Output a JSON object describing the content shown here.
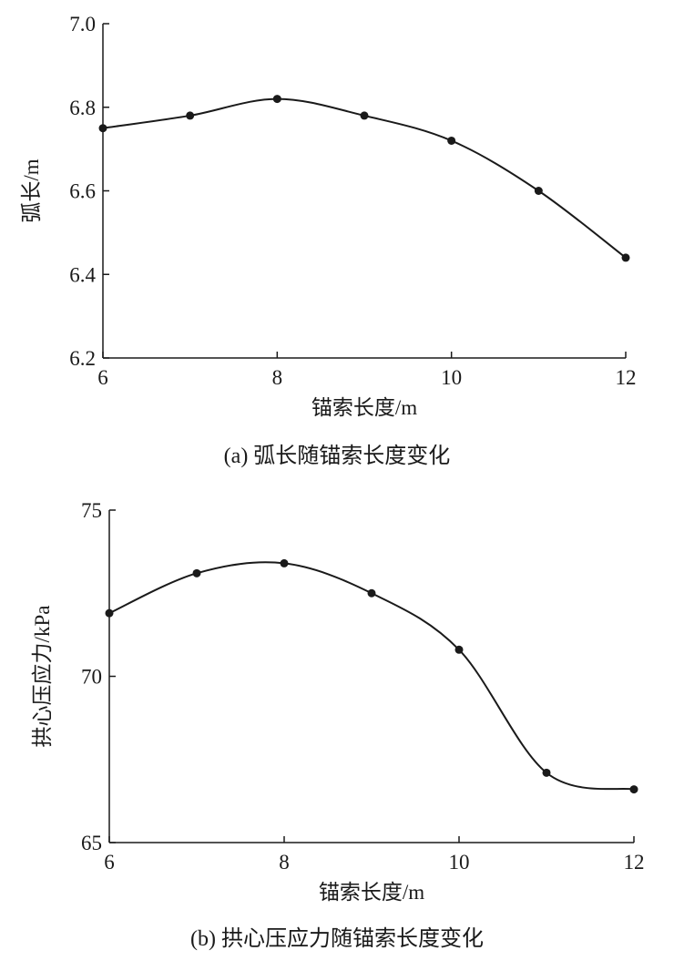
{
  "chart_data": [
    {
      "type": "line",
      "caption": "(a)  弧长随锚索长度变化",
      "xlabel": "锚索长度/m",
      "ylabel": "弧长/m",
      "xlim": [
        6,
        12
      ],
      "ylim": [
        6.2,
        7.0
      ],
      "xticks": [
        6,
        8,
        10,
        12
      ],
      "yticks": [
        6.2,
        6.4,
        6.6,
        6.8,
        7.0
      ],
      "xtick_labels": [
        "6",
        "8",
        "10",
        "12"
      ],
      "ytick_labels": [
        "6.2",
        "6.4",
        "6.6",
        "6.8",
        "7.0"
      ],
      "smooth": true,
      "markers": true,
      "line_color": "#1a1a1a",
      "series": [
        {
          "x": [
            6,
            7,
            8,
            9,
            10,
            11,
            12
          ],
          "y": [
            6.75,
            6.78,
            6.82,
            6.78,
            6.72,
            6.6,
            6.44
          ]
        }
      ]
    },
    {
      "type": "line",
      "caption": "(b)  拱心压应力随锚索长度变化",
      "xlabel": "锚索长度/m",
      "ylabel": "拱心压应力/kPa",
      "xlim": [
        6,
        12
      ],
      "ylim": [
        65,
        75
      ],
      "xticks": [
        6,
        8,
        10,
        12
      ],
      "yticks": [
        65,
        70,
        75
      ],
      "xtick_labels": [
        "6",
        "8",
        "10",
        "12"
      ],
      "ytick_labels": [
        "65",
        "70",
        "75"
      ],
      "smooth": true,
      "markers": true,
      "line_color": "#1a1a1a",
      "series": [
        {
          "x": [
            6,
            7,
            8,
            9,
            10,
            11,
            12
          ],
          "y": [
            71.9,
            73.1,
            73.4,
            72.5,
            70.8,
            67.1,
            66.6
          ]
        }
      ]
    }
  ]
}
